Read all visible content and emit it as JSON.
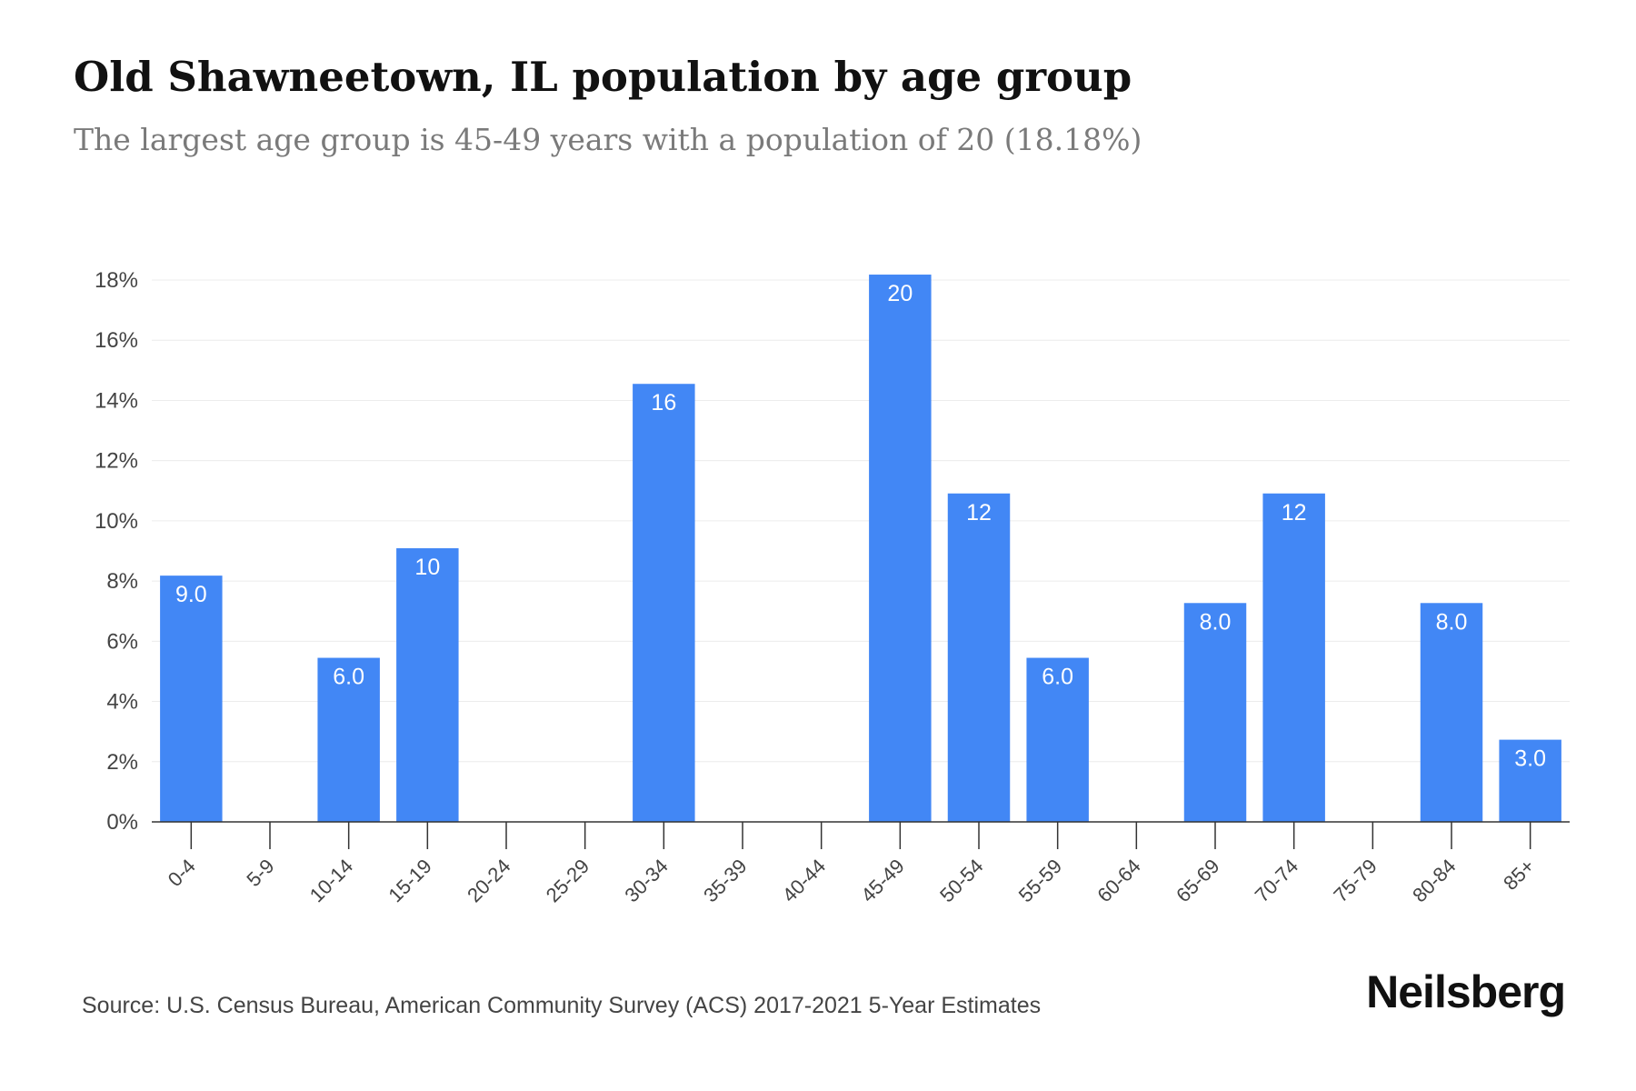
{
  "header": {
    "title": "Old Shawneetown, IL population by age group",
    "subtitle": "The largest age group is 45-49 years with a population of 20 (18.18%)"
  },
  "footer": {
    "source": "Source: U.S. Census Bureau, American Community Survey (ACS) 2017-2021 5-Year Estimates",
    "brand": "Neilsberg"
  },
  "colors": {
    "bar": "#4287f5",
    "grid": "#ececec",
    "axis": "#333333"
  },
  "chart_data": {
    "type": "bar",
    "title": "Old Shawneetown, IL population by age group",
    "subtitle": "The largest age group is 45-49 years with a population of 20 (18.18%)",
    "categories": [
      "0-4",
      "5-9",
      "10-14",
      "15-19",
      "20-24",
      "25-29",
      "30-34",
      "35-39",
      "40-44",
      "45-49",
      "50-54",
      "55-59",
      "60-64",
      "65-69",
      "70-74",
      "75-79",
      "80-84",
      "85+"
    ],
    "values": [
      8.18,
      0,
      5.45,
      9.09,
      0,
      0,
      14.55,
      0,
      0,
      18.18,
      10.91,
      5.45,
      0,
      7.27,
      10.91,
      0,
      7.27,
      2.73
    ],
    "data_labels": [
      "9.0",
      "",
      "6.0",
      "10",
      "",
      "",
      "16",
      "",
      "",
      "20",
      "12",
      "6.0",
      "",
      "8.0",
      "12",
      "",
      "8.0",
      "3.0"
    ],
    "yticks": [
      0,
      2,
      4,
      6,
      8,
      10,
      12,
      14,
      16,
      18
    ],
    "ytick_labels": [
      "0%",
      "2%",
      "4%",
      "6%",
      "8%",
      "10%",
      "12%",
      "14%",
      "16%",
      "18%"
    ],
    "ylim": [
      0,
      18
    ],
    "xlabel": "",
    "ylabel": "",
    "grid": true,
    "legend": "none"
  }
}
